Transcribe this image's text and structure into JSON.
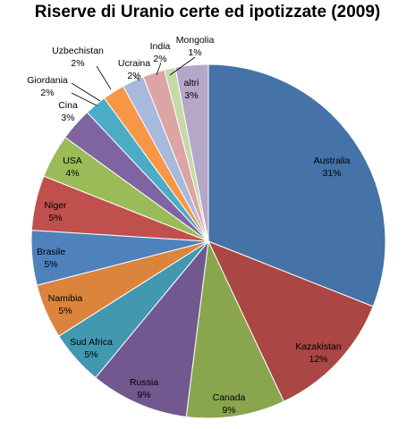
{
  "chart_data": {
    "type": "pie",
    "title": "Riserve di Uranio certe ed ipotizzate (2009)",
    "slices": [
      {
        "label": "Australia",
        "pct_label": "31%",
        "value": 31,
        "color": "#4572a7"
      },
      {
        "label": "Kazakistan",
        "pct_label": "12%",
        "value": 12,
        "color": "#aa4643"
      },
      {
        "label": "Canada",
        "pct_label": "9%",
        "value": 9,
        "color": "#89a54e"
      },
      {
        "label": "Russia",
        "pct_label": "9%",
        "value": 9,
        "color": "#71588f"
      },
      {
        "label": "Sud Africa",
        "pct_label": "5%",
        "value": 5,
        "color": "#4198af"
      },
      {
        "label": "Namibia",
        "pct_label": "5%",
        "value": 5,
        "color": "#db843d"
      },
      {
        "label": "Brasile",
        "pct_label": "5%",
        "value": 5,
        "color": "#4f81bd"
      },
      {
        "label": "Niger",
        "pct_label": "5%",
        "value": 5,
        "color": "#c0504d"
      },
      {
        "label": "USA",
        "pct_label": "4%",
        "value": 4,
        "color": "#9bbb59"
      },
      {
        "label": "Cina",
        "pct_label": "3%",
        "value": 3,
        "color": "#8064a2"
      },
      {
        "label": "Giordania",
        "pct_label": "2%",
        "value": 2,
        "color": "#4bacc6"
      },
      {
        "label": "Uzbechistan",
        "pct_label": "2%",
        "value": 2,
        "color": "#f79646"
      },
      {
        "label": "Ucraina",
        "pct_label": "2%",
        "value": 2,
        "color": "#a7b9dc"
      },
      {
        "label": "India",
        "pct_label": "2%",
        "value": 2,
        "color": "#dca4a3"
      },
      {
        "label": "Mongolia",
        "pct_label": "1%",
        "value": 1,
        "color": "#c6d9a8"
      },
      {
        "label": "altri",
        "pct_label": "3%",
        "value": 3,
        "color": "#b4a7c8"
      }
    ]
  }
}
